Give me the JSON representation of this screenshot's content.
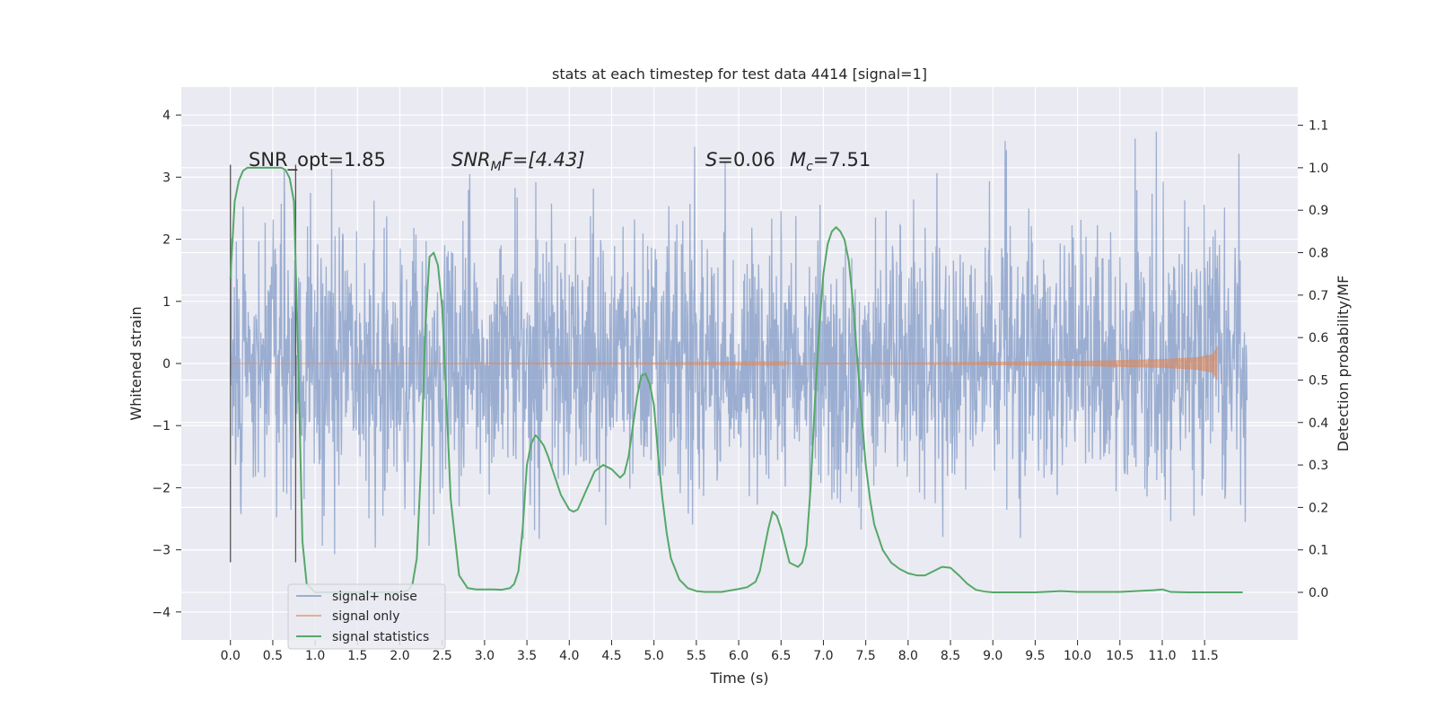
{
  "chart_data": {
    "type": "line",
    "title": "stats at each timestep for test data 4414 [signal=1]",
    "xlabel": "Time (s)",
    "ylabel": "Whitened strain",
    "y2label": "Detection probability/MF",
    "xlim": [
      -0.58,
      12.6
    ],
    "ylim": [
      -4.45,
      4.45
    ],
    "y2lim": [
      -0.112,
      1.19
    ],
    "x_ticks": [
      0.0,
      0.5,
      1.0,
      1.5,
      2.0,
      2.5,
      3.0,
      3.5,
      4.0,
      4.5,
      5.0,
      5.5,
      6.0,
      6.5,
      7.0,
      7.5,
      8.0,
      8.5,
      9.0,
      9.5,
      10.0,
      10.5,
      11.0,
      11.5
    ],
    "x_tick_labels": [
      "0.0",
      "0.5",
      "1.0",
      "1.5",
      "2.0",
      "2.5",
      "3.0",
      "3.5",
      "4.0",
      "4.5",
      "5.0",
      "5.5",
      "6.0",
      "6.5",
      "7.0",
      "7.5",
      "8.0",
      "8.5",
      "9.0",
      "9.5",
      "10.0",
      "10.5",
      "11.0",
      "11.5"
    ],
    "y_ticks": [
      -4,
      -3,
      -2,
      -1,
      0,
      1,
      2,
      3,
      4
    ],
    "y_tick_labels": [
      "−4",
      "−3",
      "−2",
      "−1",
      "0",
      "1",
      "2",
      "3",
      "4"
    ],
    "y2_ticks": [
      0.0,
      0.1,
      0.2,
      0.3,
      0.4,
      0.5,
      0.6,
      0.7,
      0.8,
      0.9,
      1.0,
      1.1
    ],
    "y2_tick_labels": [
      "0.0",
      "0.1",
      "0.2",
      "0.3",
      "0.4",
      "0.5",
      "0.6",
      "0.7",
      "0.8",
      "0.9",
      "1.0",
      "1.1"
    ],
    "grid": true,
    "legend_position": "lower-left",
    "annotations": {
      "snr_opt": "SNR_opt=1.85",
      "snr_mf_main": "SNR",
      "snr_mf_sub": "M",
      "snr_mf_rest": "F=[4.43]",
      "s_main": "S",
      "s_rest": "=0.06",
      "mc_main": "M",
      "mc_sub": "c",
      "mc_rest": "=7.51"
    },
    "vertical_lines": [
      0.0,
      0.77
    ],
    "series": [
      {
        "name": "signal+ noise",
        "color": "#4c72b0",
        "description_type": "noise",
        "x_range": [
          0.0,
          12.0
        ],
        "sigma": 1.0,
        "amplitude_range": [
          -4.1,
          4.1
        ]
      },
      {
        "name": "signal only",
        "color": "#dd8452",
        "x_range": [
          0.0,
          11.65
        ],
        "envelope": {
          "x": [
            0.0,
            5.0,
            8.0,
            10.0,
            11.0,
            11.4,
            11.6,
            11.65
          ],
          "amp": [
            0.0,
            0.005,
            0.015,
            0.04,
            0.07,
            0.1,
            0.15,
            0.28
          ]
        }
      },
      {
        "name": "signal statistics",
        "color": "#55a868",
        "x": [
          0.0,
          0.05,
          0.1,
          0.15,
          0.2,
          0.3,
          0.4,
          0.5,
          0.6,
          0.65,
          0.7,
          0.75,
          0.8,
          0.85,
          0.9,
          1.0,
          1.2,
          1.5,
          1.8,
          2.0,
          2.1,
          2.15,
          2.2,
          2.25,
          2.3,
          2.35,
          2.4,
          2.45,
          2.5,
          2.55,
          2.6,
          2.7,
          2.8,
          2.9,
          3.0,
          3.1,
          3.2,
          3.3,
          3.35,
          3.4,
          3.45,
          3.5,
          3.55,
          3.6,
          3.65,
          3.7,
          3.75,
          3.8,
          3.9,
          4.0,
          4.05,
          4.1,
          4.2,
          4.3,
          4.4,
          4.5,
          4.55,
          4.6,
          4.65,
          4.7,
          4.75,
          4.8,
          4.85,
          4.9,
          4.95,
          5.0,
          5.05,
          5.1,
          5.15,
          5.2,
          5.3,
          5.4,
          5.5,
          5.6,
          5.8,
          6.0,
          6.1,
          6.2,
          6.25,
          6.3,
          6.35,
          6.4,
          6.45,
          6.5,
          6.55,
          6.6,
          6.7,
          6.75,
          6.8,
          6.85,
          6.9,
          6.95,
          7.0,
          7.05,
          7.1,
          7.15,
          7.2,
          7.25,
          7.3,
          7.35,
          7.4,
          7.45,
          7.5,
          7.55,
          7.6,
          7.7,
          7.8,
          7.9,
          8.0,
          8.1,
          8.2,
          8.3,
          8.4,
          8.5,
          8.6,
          8.7,
          8.8,
          8.9,
          9.0,
          9.5,
          9.8,
          10.0,
          10.5,
          10.9,
          11.0,
          11.1,
          11.3,
          11.5,
          11.95
        ],
        "values": [
          0.74,
          0.92,
          0.97,
          0.993,
          1.0,
          1.0,
          1.0,
          1.0,
          1.0,
          0.995,
          0.975,
          0.92,
          0.55,
          0.12,
          0.02,
          0.0,
          0.0,
          0.0,
          0.0,
          0.0,
          0.005,
          0.02,
          0.08,
          0.3,
          0.62,
          0.79,
          0.8,
          0.77,
          0.67,
          0.45,
          0.22,
          0.04,
          0.01,
          0.007,
          0.007,
          0.007,
          0.006,
          0.01,
          0.02,
          0.05,
          0.15,
          0.3,
          0.35,
          0.37,
          0.36,
          0.345,
          0.32,
          0.29,
          0.23,
          0.195,
          0.19,
          0.195,
          0.24,
          0.285,
          0.3,
          0.29,
          0.28,
          0.27,
          0.28,
          0.32,
          0.39,
          0.46,
          0.51,
          0.515,
          0.49,
          0.44,
          0.32,
          0.22,
          0.14,
          0.08,
          0.03,
          0.01,
          0.003,
          0.001,
          0.001,
          0.008,
          0.012,
          0.025,
          0.05,
          0.1,
          0.15,
          0.19,
          0.18,
          0.15,
          0.11,
          0.07,
          0.06,
          0.07,
          0.11,
          0.25,
          0.45,
          0.62,
          0.75,
          0.82,
          0.85,
          0.86,
          0.85,
          0.83,
          0.78,
          0.68,
          0.55,
          0.42,
          0.3,
          0.22,
          0.16,
          0.1,
          0.07,
          0.055,
          0.045,
          0.04,
          0.04,
          0.05,
          0.06,
          0.058,
          0.04,
          0.02,
          0.006,
          0.002,
          0.0,
          0.0,
          0.003,
          0.001,
          0.001,
          0.005,
          0.007,
          0.001,
          0.0,
          0.0,
          0.0
        ]
      }
    ]
  }
}
